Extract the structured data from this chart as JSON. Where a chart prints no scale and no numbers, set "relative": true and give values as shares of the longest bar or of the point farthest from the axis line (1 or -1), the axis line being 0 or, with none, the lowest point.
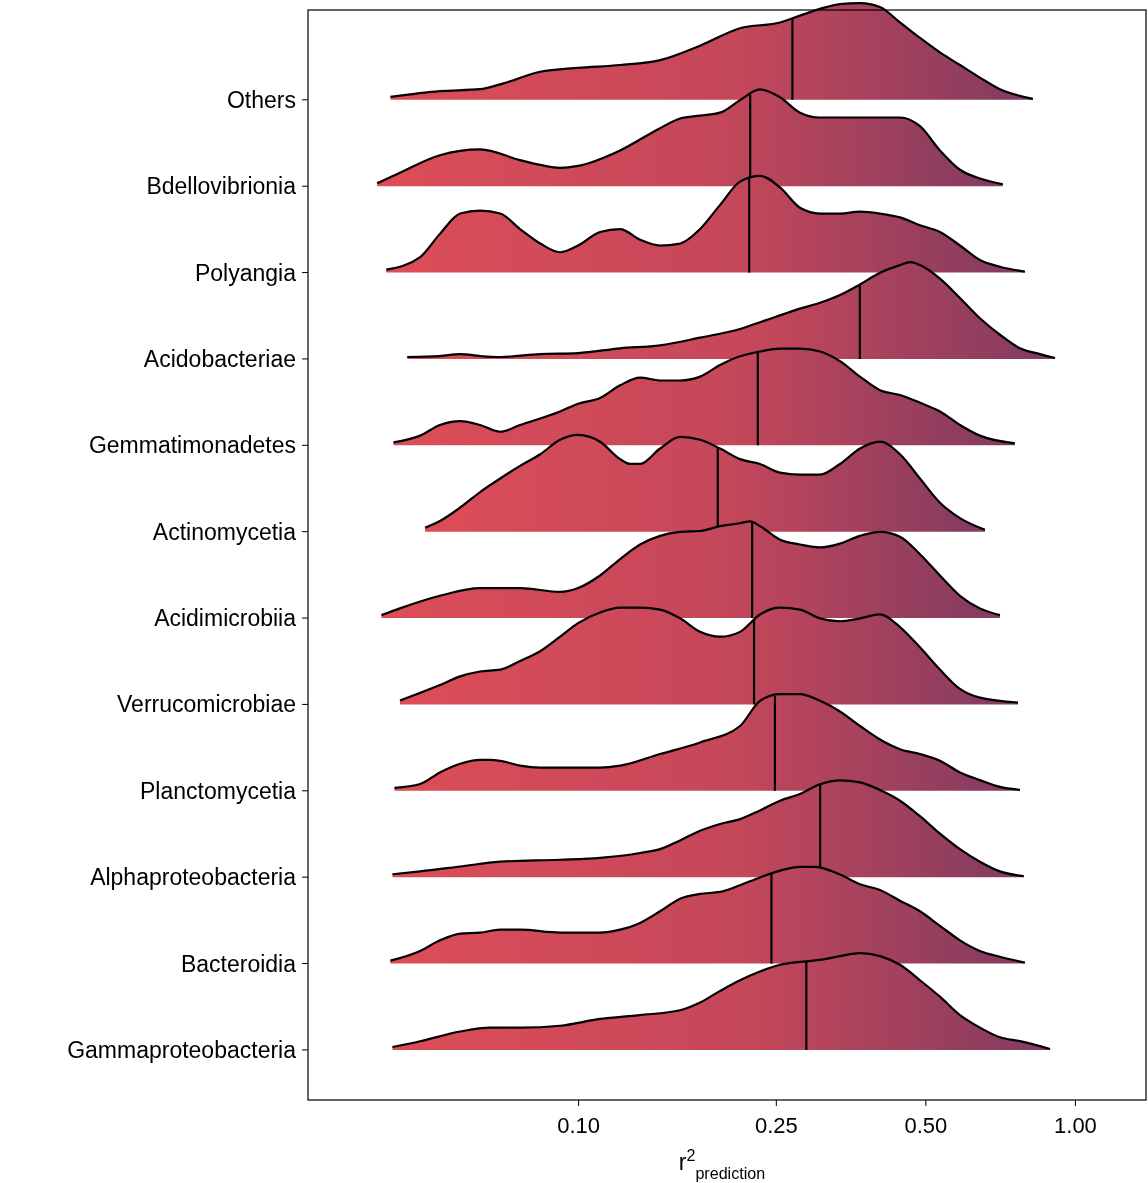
{
  "chart_data": [
    {
      "type": "area",
      "relative": true,
      "ylabel": "Others",
      "log": "x",
      "xlim": [
        0.0286,
        1.39
      ],
      "tick_labels": false,
      "series": [
        {
          "color": "#c4475a",
          "x": [
            0.0419,
            0.0527,
            0.0635,
            0.0697,
            0.0839,
            0.1,
            0.1215,
            0.1462,
            0.176,
            0.2118,
            0.2549,
            0.2796,
            0.3068,
            0.3366,
            0.3693,
            0.4051,
            0.4445,
            0.4876,
            0.5349,
            0.5869,
            0.6438,
            0.7063,
            0.823
          ],
          "values": [
            0.03,
            0.09,
            0.11,
            0.16,
            0.29,
            0.33,
            0.36,
            0.41,
            0.56,
            0.74,
            0.8,
            0.87,
            0.94,
            0.99,
            1,
            0.96,
            0.8,
            0.64,
            0.49,
            0.36,
            0.23,
            0.11,
            0.01
          ]
        }
      ],
      "ref_lines": [
        {
          "axis": "x",
          "value": 0.27
        }
      ]
    },
    {
      "type": "area",
      "relative": true,
      "ylabel": "Bdellovibrionia",
      "log": "x",
      "xlim": [
        0.0286,
        1.39
      ],
      "tick_labels": false,
      "series": [
        {
          "color": "#c4475a",
          "x": [
            0.0394,
            0.0438,
            0.0527,
            0.0635,
            0.0764,
            0.0839,
            0.092,
            0.1,
            0.1215,
            0.1462,
            0.1604,
            0.176,
            0.1931,
            0.2118,
            0.2323,
            0.2549,
            0.2796,
            0.3068,
            0.3693,
            0.4445,
            0.4876,
            0.5349,
            0.5869,
            0.6438,
            0.716
          ],
          "values": [
            0.03,
            0.14,
            0.32,
            0.38,
            0.27,
            0.22,
            0.19,
            0.21,
            0.37,
            0.6,
            0.7,
            0.73,
            0.76,
            0.89,
            1,
            0.92,
            0.76,
            0.71,
            0.71,
            0.71,
            0.62,
            0.37,
            0.17,
            0.08,
            0.02
          ]
        }
      ],
      "ref_lines": [
        {
          "axis": "x",
          "value": 0.222
        }
      ]
    },
    {
      "type": "area",
      "relative": true,
      "ylabel": "Polyangia",
      "log": "x",
      "xlim": [
        0.0286,
        1.39
      ],
      "tick_labels": false,
      "series": [
        {
          "color": "#c4475a",
          "x": [
            0.0411,
            0.0481,
            0.0527,
            0.0579,
            0.0635,
            0.0697,
            0.0764,
            0.0839,
            0.092,
            0.1,
            0.1107,
            0.1215,
            0.1333,
            0.1462,
            0.1604,
            0.176,
            0.1931,
            0.2118,
            0.2323,
            0.2549,
            0.2796,
            0.3068,
            0.3366,
            0.3693,
            0.4051,
            0.4445,
            0.4876,
            0.5349,
            0.5869,
            0.6438,
            0.7063,
            0.793
          ],
          "values": [
            0.03,
            0.16,
            0.4,
            0.61,
            0.64,
            0.61,
            0.45,
            0.3,
            0.21,
            0.28,
            0.42,
            0.45,
            0.34,
            0.28,
            0.3,
            0.45,
            0.7,
            0.94,
            1,
            0.88,
            0.67,
            0.61,
            0.61,
            0.63,
            0.61,
            0.57,
            0.49,
            0.42,
            0.28,
            0.13,
            0.06,
            0.01
          ]
        }
      ],
      "ref_lines": [
        {
          "axis": "x",
          "value": 0.221
        }
      ]
    },
    {
      "type": "area",
      "relative": true,
      "ylabel": "Acidobacteriae",
      "log": "x",
      "xlim": [
        0.0286,
        1.39
      ],
      "tick_labels": false,
      "series": [
        {
          "color": "#c4475a",
          "x": [
            0.0453,
            0.0527,
            0.0579,
            0.0635,
            0.0697,
            0.0839,
            0.1,
            0.1215,
            0.1462,
            0.176,
            0.2118,
            0.2323,
            0.2549,
            0.2796,
            0.3068,
            0.3366,
            0.3693,
            0.4051,
            0.4445,
            0.466,
            0.4876,
            0.5349,
            0.5869,
            0.6438,
            0.7063,
            0.7749,
            0.8502,
            0.912
          ],
          "values": [
            0.02,
            0.03,
            0.05,
            0.03,
            0.02,
            0.05,
            0.06,
            0.11,
            0.14,
            0.22,
            0.31,
            0.38,
            0.45,
            0.52,
            0.58,
            0.66,
            0.77,
            0.89,
            0.97,
            1,
            0.97,
            0.83,
            0.63,
            0.42,
            0.25,
            0.11,
            0.05,
            0.01
          ]
        }
      ],
      "ref_lines": [
        {
          "axis": "x",
          "value": 0.369
        }
      ]
    },
    {
      "type": "area",
      "relative": true,
      "ylabel": "Gemmatimonadetes",
      "log": "x",
      "xlim": [
        0.0286,
        1.39
      ],
      "tick_labels": false,
      "series": [
        {
          "color": "#c4475a",
          "x": [
            0.0425,
            0.0481,
            0.0527,
            0.0579,
            0.0635,
            0.0697,
            0.0764,
            0.092,
            0.1,
            0.1107,
            0.1215,
            0.1333,
            0.1462,
            0.1604,
            0.176,
            0.1931,
            0.2118,
            0.2323,
            0.2549,
            0.2796,
            0.3068,
            0.3366,
            0.3693,
            0.4051,
            0.4445,
            0.4876,
            0.5349,
            0.5869,
            0.6438,
            0.757
          ],
          "values": [
            0.03,
            0.1,
            0.21,
            0.25,
            0.21,
            0.14,
            0.21,
            0.35,
            0.43,
            0.49,
            0.62,
            0.7,
            0.67,
            0.67,
            0.71,
            0.83,
            0.92,
            0.97,
            1,
            1,
            0.97,
            0.87,
            0.71,
            0.57,
            0.52,
            0.44,
            0.35,
            0.21,
            0.1,
            0.02
          ]
        }
      ],
      "ref_lines": [
        {
          "axis": "x",
          "value": 0.23
        }
      ]
    },
    {
      "type": "area",
      "relative": true,
      "ylabel": "Actinomycetia",
      "log": "x",
      "xlim": [
        0.0286,
        1.39
      ],
      "tick_labels": false,
      "series": [
        {
          "color": "#c4475a",
          "x": [
            0.0492,
            0.0527,
            0.0579,
            0.0635,
            0.0697,
            0.0764,
            0.0839,
            0.092,
            0.1,
            0.1107,
            0.1215,
            0.1273,
            0.1333,
            0.1462,
            0.1604,
            0.176,
            0.1931,
            0.2118,
            0.2323,
            0.2549,
            0.2796,
            0.3068,
            0.3366,
            0.3693,
            0.4051,
            0.4445,
            0.4876,
            0.5349,
            0.5869,
            0.659
          ],
          "values": [
            0.04,
            0.11,
            0.25,
            0.41,
            0.55,
            0.68,
            0.8,
            0.95,
            1,
            0.93,
            0.75,
            0.7,
            0.7,
            0.86,
            0.98,
            0.95,
            0.86,
            0.75,
            0.7,
            0.61,
            0.59,
            0.59,
            0.7,
            0.86,
            0.93,
            0.8,
            0.55,
            0.3,
            0.14,
            0.02
          ]
        }
      ],
      "ref_lines": [
        {
          "axis": "x",
          "value": 0.191
        }
      ]
    },
    {
      "type": "area",
      "relative": true,
      "ylabel": "Acidimicrobiia",
      "log": "x",
      "xlim": [
        0.0286,
        1.39
      ],
      "tick_labels": false,
      "series": [
        {
          "color": "#c4475a",
          "x": [
            0.0402,
            0.0438,
            0.0527,
            0.0635,
            0.0764,
            0.092,
            0.1,
            0.1107,
            0.1215,
            0.1333,
            0.1462,
            0.1604,
            0.176,
            0.1931,
            0.2118,
            0.222,
            0.2323,
            0.2549,
            0.2796,
            0.3068,
            0.3366,
            0.3693,
            0.4051,
            0.4445,
            0.4876,
            0.5349,
            0.5869,
            0.6438,
            0.7063
          ],
          "values": [
            0.03,
            0.1,
            0.23,
            0.31,
            0.31,
            0.27,
            0.31,
            0.44,
            0.61,
            0.76,
            0.85,
            0.89,
            0.9,
            0.95,
            0.98,
            1,
            0.95,
            0.81,
            0.76,
            0.73,
            0.77,
            0.85,
            0.89,
            0.84,
            0.66,
            0.44,
            0.23,
            0.1,
            0.03
          ]
        }
      ],
      "ref_lines": [
        {
          "axis": "x",
          "value": 0.224
        }
      ]
    },
    {
      "type": "area",
      "relative": true,
      "ylabel": "Verrucomicrobiae",
      "log": "x",
      "xlim": [
        0.0286,
        1.39
      ],
      "tick_labels": false,
      "series": [
        {
          "color": "#c4475a",
          "x": [
            0.0438,
            0.0527,
            0.0579,
            0.0635,
            0.0697,
            0.0764,
            0.0839,
            0.092,
            0.1,
            0.1107,
            0.1215,
            0.1333,
            0.1462,
            0.1604,
            0.176,
            0.1931,
            0.2118,
            0.2323,
            0.2549,
            0.2796,
            0.3068,
            0.3366,
            0.3693,
            0.4051,
            0.4445,
            0.4876,
            0.5349,
            0.5869,
            0.6438,
            0.768
          ],
          "values": [
            0.04,
            0.2,
            0.29,
            0.34,
            0.36,
            0.45,
            0.55,
            0.7,
            0.84,
            0.95,
            1,
            1,
            0.98,
            0.89,
            0.75,
            0.7,
            0.75,
            0.93,
            1,
            0.98,
            0.89,
            0.86,
            0.89,
            0.93,
            0.8,
            0.59,
            0.36,
            0.16,
            0.07,
            0.02
          ]
        }
      ],
      "ref_lines": [
        {
          "axis": "x",
          "value": 0.226
        }
      ]
    },
    {
      "type": "area",
      "relative": true,
      "ylabel": "Planctomycetia",
      "log": "x",
      "xlim": [
        0.0286,
        1.39
      ],
      "tick_labels": false,
      "series": [
        {
          "color": "#c4475a",
          "x": [
            0.0427,
            0.0481,
            0.0527,
            0.0579,
            0.0635,
            0.0665,
            0.0697,
            0.0764,
            0.0839,
            0.092,
            0.1107,
            0.1215,
            0.1462,
            0.176,
            0.2118,
            0.2323,
            0.2549,
            0.2796,
            0.3068,
            0.3366,
            0.3693,
            0.4051,
            0.4445,
            0.4876,
            0.5349,
            0.5869,
            0.6438,
            0.7063,
            0.7749
          ],
          "values": [
            0.03,
            0.07,
            0.19,
            0.28,
            0.32,
            0.32,
            0.31,
            0.26,
            0.24,
            0.24,
            0.24,
            0.26,
            0.38,
            0.5,
            0.67,
            0.93,
            1,
            1,
            0.93,
            0.82,
            0.67,
            0.53,
            0.43,
            0.38,
            0.31,
            0.19,
            0.11,
            0.04,
            0.01
          ]
        }
      ],
      "ref_lines": [
        {
          "axis": "x",
          "value": 0.249
        }
      ]
    },
    {
      "type": "area",
      "relative": true,
      "ylabel": "Alphaproteobacteria",
      "log": "x",
      "xlim": [
        0.0286,
        1.39
      ],
      "tick_labels": false,
      "series": [
        {
          "color": "#c4475a",
          "x": [
            0.0423,
            0.0481,
            0.0579,
            0.0697,
            0.092,
            0.1107,
            0.1333,
            0.1462,
            0.1604,
            0.176,
            0.1931,
            0.2118,
            0.2323,
            0.2549,
            0.2796,
            0.3068,
            0.3366,
            0.3693,
            0.4051,
            0.4445,
            0.4876,
            0.5349,
            0.5869,
            0.6438,
            0.7063,
            0.789
          ],
          "values": [
            0.03,
            0.06,
            0.11,
            0.16,
            0.18,
            0.2,
            0.25,
            0.29,
            0.38,
            0.48,
            0.55,
            0.6,
            0.69,
            0.79,
            0.86,
            0.96,
            1,
            0.98,
            0.9,
            0.79,
            0.63,
            0.45,
            0.29,
            0.16,
            0.06,
            0.01
          ]
        }
      ],
      "ref_lines": [
        {
          "axis": "x",
          "value": 0.307
        }
      ]
    },
    {
      "type": "area",
      "relative": true,
      "ylabel": "Bacteroidia",
      "log": "x",
      "xlim": [
        0.0286,
        1.39
      ],
      "tick_labels": false,
      "series": [
        {
          "color": "#c4475a",
          "x": [
            0.0419,
            0.0481,
            0.0527,
            0.0579,
            0.0635,
            0.0697,
            0.0764,
            0.092,
            0.1107,
            0.1215,
            0.1333,
            0.1462,
            0.1604,
            0.176,
            0.1931,
            0.2118,
            0.2323,
            0.2549,
            0.2796,
            0.3,
            0.3366,
            0.3693,
            0.4051,
            0.4445,
            0.4876,
            0.5349,
            0.5869,
            0.6438,
            0.7063,
            0.793
          ],
          "values": [
            0.03,
            0.13,
            0.24,
            0.31,
            0.32,
            0.35,
            0.35,
            0.32,
            0.32,
            0.35,
            0.42,
            0.54,
            0.67,
            0.72,
            0.74,
            0.81,
            0.89,
            0.96,
            1,
            1,
            0.92,
            0.82,
            0.76,
            0.65,
            0.54,
            0.39,
            0.24,
            0.13,
            0.07,
            0.01
          ]
        }
      ],
      "ref_lines": [
        {
          "axis": "x",
          "value": 0.245
        }
      ]
    },
    {
      "type": "area",
      "relative": true,
      "ylabel": "Gammaproteobacteria",
      "xlabel": "r$^{2}$$_{prediction}$",
      "log": "x",
      "xlim": [
        0.0286,
        1.39
      ],
      "xticks": [
        {
          "value": 0.1,
          "label": "0.10"
        },
        0.25,
        {
          "value": 0.5,
          "label": "0.50"
        },
        {
          "value": 1,
          "label": "1.00"
        }
      ],
      "tick_labels": "x",
      "series": [
        {
          "color": "#c4475a",
          "x": [
            0.0423,
            0.0481,
            0.0579,
            0.0665,
            0.0764,
            0.092,
            0.1107,
            0.1333,
            0.1604,
            0.176,
            0.1931,
            0.2118,
            0.2323,
            0.2549,
            0.2796,
            0.3068,
            0.3366,
            0.3693,
            0.4051,
            0.4445,
            0.4876,
            0.5349,
            0.5869,
            0.6438,
            0.7063,
            0.7749,
            0.891
          ],
          "values": [
            0.03,
            0.09,
            0.19,
            0.23,
            0.23,
            0.25,
            0.32,
            0.36,
            0.41,
            0.49,
            0.61,
            0.72,
            0.81,
            0.88,
            0.91,
            0.93,
            0.97,
            1,
            0.97,
            0.88,
            0.72,
            0.55,
            0.36,
            0.23,
            0.13,
            0.09,
            0.01
          ]
        }
      ],
      "ref_lines": [
        {
          "axis": "x",
          "value": 0.288
        }
      ]
    }
  ]
}
